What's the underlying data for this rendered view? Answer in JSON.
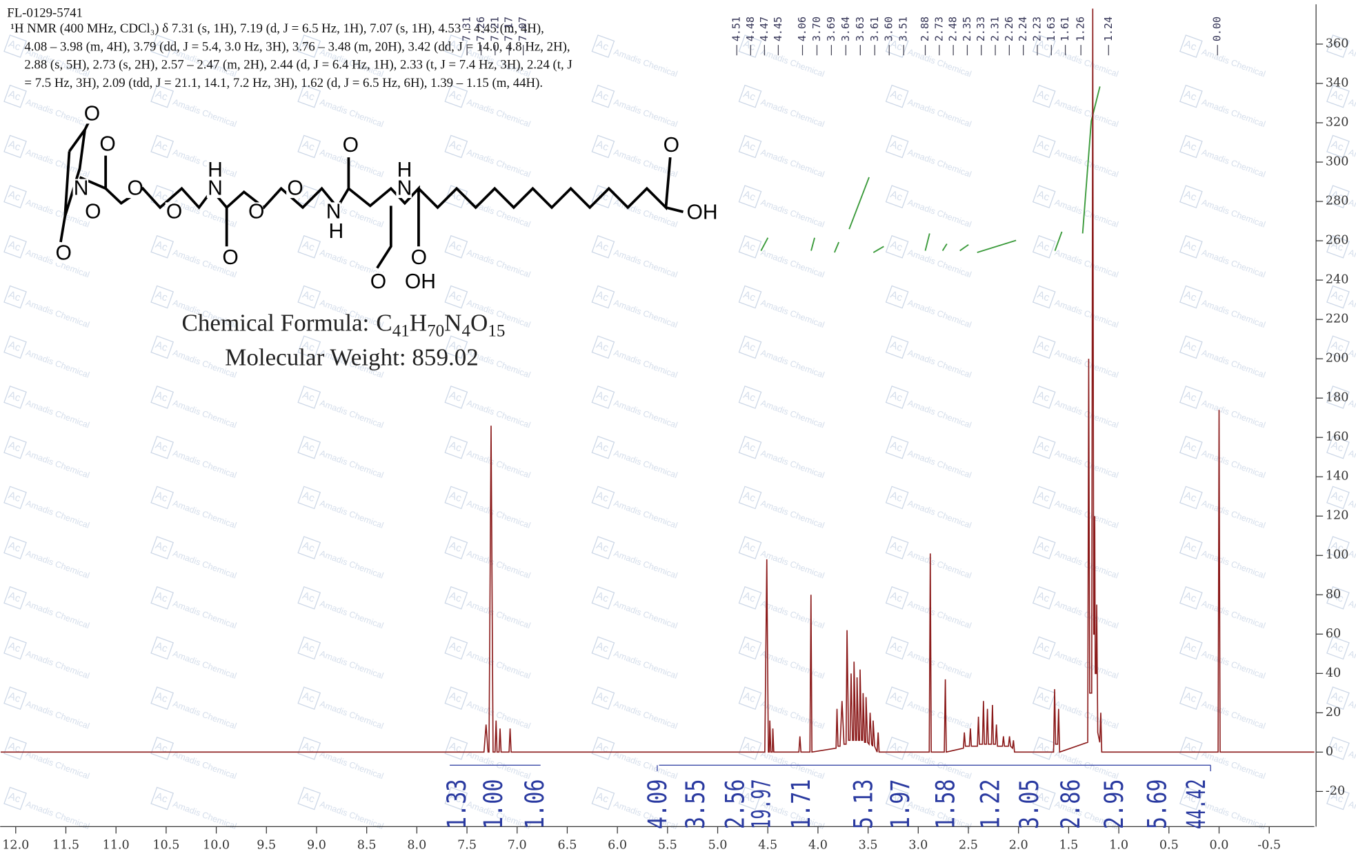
{
  "header": {
    "sample_id": "FL-0129-5741",
    "nmr_lines": [
      "¹H NMR (400 MHz, CDCl₃) δ 7.31 (s, 1H), 7.19 (d, J = 6.5 Hz, 1H), 7.07 (s, 1H), 4.53 – 4.45 (m, 4H),",
      "4.08 – 3.98 (m, 4H), 3.79 (dd, J = 5.4, 3.0 Hz, 3H), 3.76 – 3.48 (m, 20H), 3.42 (dd, J = 14.0, 4.8 Hz, 2H),",
      "2.88 (s, 5H), 2.73 (s, 2H), 2.57 – 2.47 (m, 2H), 2.44 (d, J = 6.4 Hz, 1H), 2.33 (t, J = 7.4 Hz, 3H), 2.24 (t, J",
      "= 7.5 Hz, 3H), 2.09 (tdd, J = 21.1, 14.1, 7.2 Hz, 3H), 1.62 (d, J = 6.5 Hz, 6H), 1.39 – 1.15 (m, 44H)."
    ],
    "formula_label": "Chemical Formula:",
    "formula": [
      "C",
      "41",
      "H",
      "70",
      "N",
      "4",
      "O",
      "15"
    ],
    "molecular_weight": "Molecular Weight: 859.02"
  },
  "structure_atoms": [
    "O",
    "O",
    "N",
    "O",
    "O",
    "O",
    "O",
    "H",
    "N",
    "O",
    "O",
    "O",
    "N",
    "H",
    "O",
    "H",
    "N",
    "O",
    "O",
    "OH",
    "O",
    "OH"
  ],
  "watermark": {
    "logo": "Ac",
    "text": "Amadis Chemical"
  },
  "chart_data": {
    "type": "line",
    "color": "#8b1a1a",
    "x": [
      12.15,
      7.33,
      7.31,
      7.29,
      7.28,
      7.26,
      7.24,
      7.22,
      7.21,
      7.2,
      7.18,
      7.17,
      7.16,
      7.08,
      7.07,
      7.06,
      4.53,
      4.51,
      4.495,
      4.485,
      4.48,
      4.47,
      4.455,
      4.45,
      4.44,
      4.19,
      4.18,
      4.17,
      4.08,
      4.07,
      4.06,
      3.82,
      3.81,
      3.8,
      3.78,
      3.76,
      3.74,
      3.72,
      3.71,
      3.695,
      3.68,
      3.67,
      3.655,
      3.645,
      3.64,
      3.625,
      3.615,
      3.61,
      3.595,
      3.585,
      3.58,
      3.565,
      3.555,
      3.55,
      3.535,
      3.525,
      3.52,
      3.505,
      3.49,
      3.48,
      3.465,
      3.455,
      3.45,
      3.435,
      3.41,
      3.4,
      3.39,
      2.89,
      2.88,
      2.87,
      2.74,
      2.73,
      2.72,
      2.55,
      2.54,
      2.53,
      2.49,
      2.48,
      2.47,
      2.41,
      2.4,
      2.39,
      2.36,
      2.35,
      2.34,
      2.32,
      2.31,
      2.3,
      2.27,
      2.26,
      2.25,
      2.23,
      2.22,
      2.21,
      2.16,
      2.15,
      2.14,
      2.1,
      2.09,
      2.08,
      2.06,
      2.05,
      2.04,
      1.65,
      1.64,
      1.63,
      1.61,
      1.6,
      1.59,
      1.31,
      1.3,
      1.29,
      1.27,
      1.26,
      1.25,
      1.245,
      1.24,
      1.235,
      1.225,
      1.22,
      1.21,
      1.19,
      1.18,
      1.17,
      0.01,
      0.0,
      -0.01,
      -0.95
    ],
    "values": [
      0,
      0,
      14,
      0,
      0,
      166,
      0,
      0,
      16,
      0,
      0,
      12,
      0,
      0,
      12,
      0,
      0,
      98,
      0,
      0,
      16,
      0,
      0,
      12,
      0,
      0,
      8,
      0,
      0,
      80,
      0,
      2,
      22,
      3,
      3,
      26,
      4,
      4,
      62,
      6,
      6,
      40,
      6,
      6,
      46,
      6,
      6,
      38,
      6,
      6,
      42,
      6,
      6,
      30,
      5,
      5,
      28,
      5,
      4,
      20,
      4,
      3,
      16,
      3,
      0,
      10,
      0,
      0,
      101,
      0,
      0,
      37,
      0,
      2,
      10,
      3,
      3,
      12,
      3,
      3,
      18,
      4,
      4,
      26,
      4,
      4,
      22,
      4,
      4,
      24,
      4,
      4,
      14,
      3,
      3,
      8,
      3,
      3,
      8,
      3,
      2,
      6,
      0,
      0,
      32,
      4,
      4,
      22,
      0,
      5,
      200,
      30,
      30,
      378,
      60,
      60,
      120,
      40,
      40,
      75,
      10,
      5,
      20,
      0,
      0,
      174,
      0,
      0
    ],
    "xlim": [
      12.15,
      -0.95
    ],
    "ylim": [
      -37,
      380
    ],
    "xticks": [
      {
        "value": 12,
        "label": "12.0"
      },
      11.5,
      {
        "value": 11,
        "label": "11.0"
      },
      10.5,
      {
        "value": 10,
        "label": "10.0"
      },
      9.5,
      {
        "value": 9,
        "label": "9.0"
      },
      8.5,
      {
        "value": 8,
        "label": "8.0"
      },
      7.5,
      {
        "value": 7,
        "label": "7.0"
      },
      6.5,
      {
        "value": 6,
        "label": "6.0"
      },
      5.5,
      {
        "value": 5,
        "label": "5.0"
      },
      4.5,
      {
        "value": 4,
        "label": "4.0"
      },
      3.5,
      {
        "value": 3,
        "label": "3.0"
      },
      2.5,
      {
        "value": 2,
        "label": "2.0"
      },
      1.5,
      {
        "value": 1,
        "label": "1.0"
      },
      0.5,
      {
        "value": 0,
        "label": "0.0"
      },
      -0.5
    ],
    "yticks": [
      -20,
      0,
      20,
      40,
      60,
      80,
      100,
      120,
      140,
      160,
      180,
      200,
      220,
      240,
      260,
      280,
      300,
      320,
      340,
      360
    ],
    "peak_label_groups": [
      [
        "7.31",
        "7.26",
        "7.21",
        "7.17",
        "7.07"
      ],
      [
        "4.51",
        "4.48",
        "4.47",
        "4.45"
      ],
      [
        "4.06",
        "3.70",
        "3.69",
        "3.64",
        "3.63",
        "3.61",
        "3.60",
        "3.51"
      ],
      [
        "2.88",
        "2.73",
        "2.48",
        "2.35",
        "2.33",
        "2.31",
        "2.26",
        "2.24",
        "2.23",
        "1.63",
        "1.61"
      ],
      [
        "1.26",
        "1.24"
      ],
      [
        "0.00"
      ]
    ],
    "integral_labels": [
      "1.33",
      "1.00",
      "1.06",
      "4.09",
      "3.55",
      "2.56",
      "19.97",
      "1.71",
      "5.13",
      "1.97",
      "1.58",
      "1.22",
      "3.05",
      "2.86",
      "2.95",
      "5.69",
      "44.42"
    ]
  }
}
